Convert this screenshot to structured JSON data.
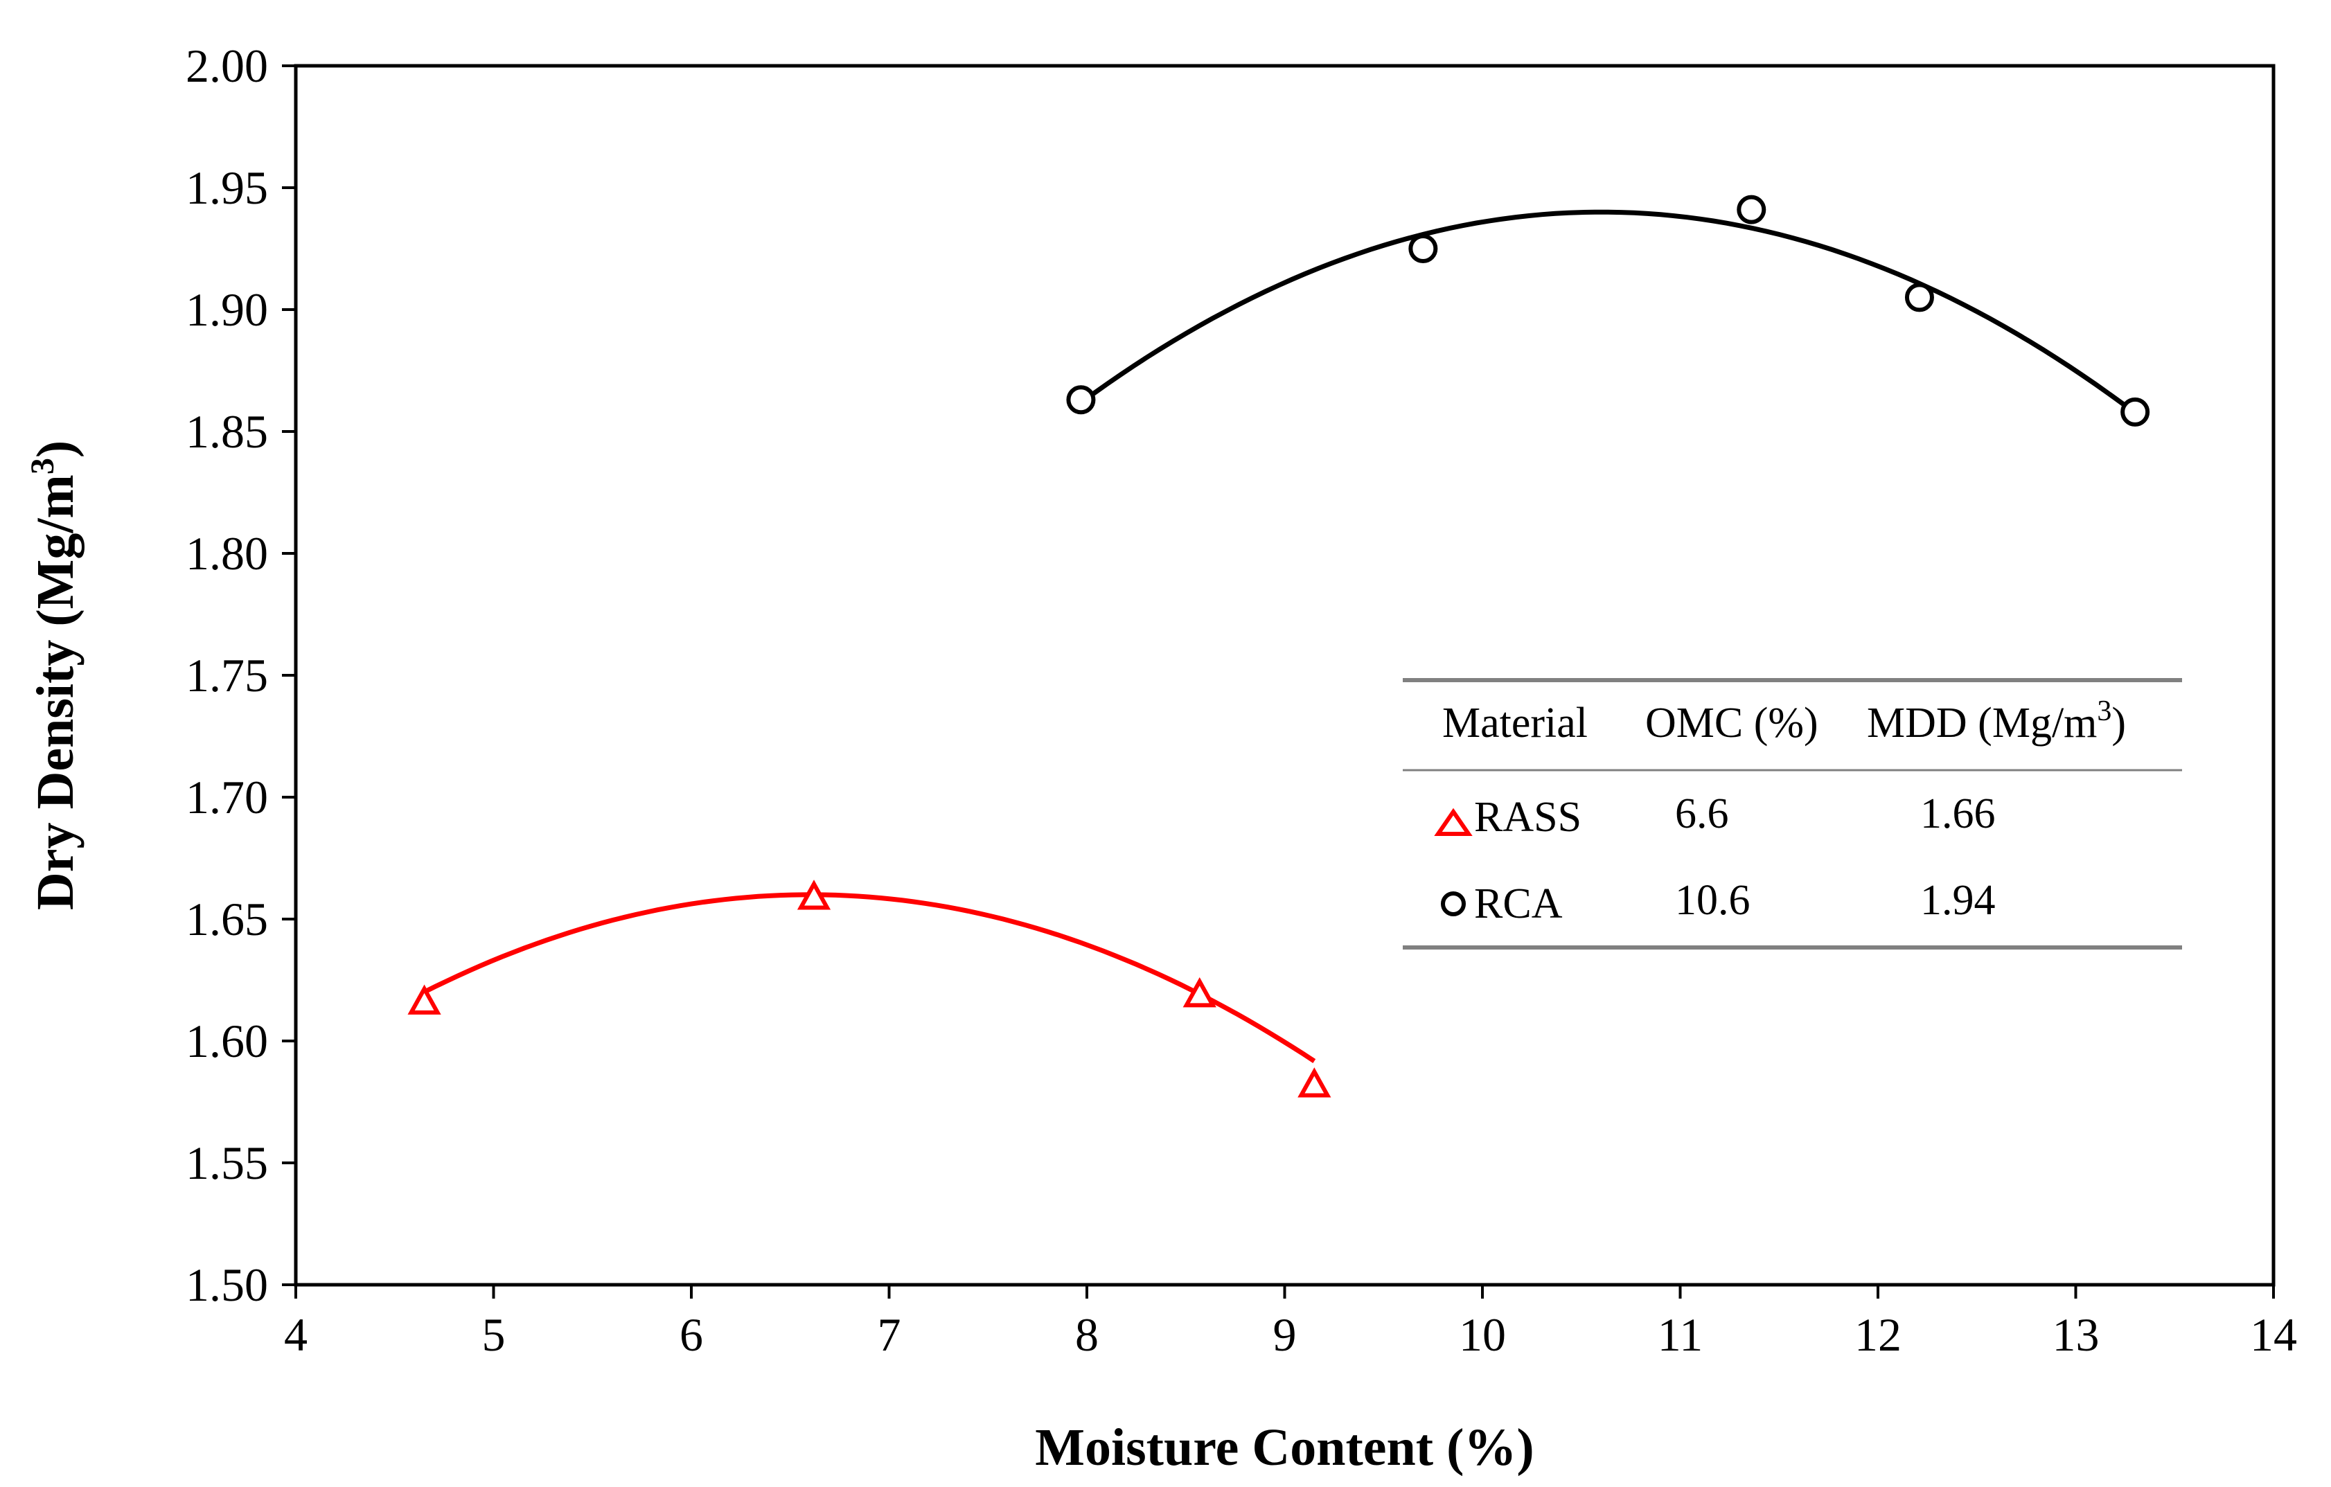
{
  "chart_data": {
    "type": "scatter",
    "title": "",
    "xlabel": "Moisture Content (%)",
    "ylabel_main": "Dry Density (Mg/m",
    "ylabel_sup": "3",
    "ylabel_close": ")",
    "xlim": [
      4,
      14
    ],
    "ylim": [
      1.5,
      2.0
    ],
    "xticks": [
      4,
      5,
      6,
      7,
      8,
      9,
      10,
      11,
      12,
      13,
      14
    ],
    "yticks": [
      "1.50",
      "1.55",
      "1.60",
      "1.65",
      "1.70",
      "1.75",
      "1.80",
      "1.85",
      "1.90",
      "1.95",
      "2.00"
    ],
    "series": [
      {
        "name": "RASS",
        "marker": "triangle",
        "color": "#ff0000",
        "points": [
          {
            "x": 4.65,
            "y": 1.616
          },
          {
            "x": 6.62,
            "y": 1.659
          },
          {
            "x": 8.57,
            "y": 1.619
          },
          {
            "x": 9.15,
            "y": 1.582
          }
        ],
        "fit_curve": {
          "x_range": [
            4.65,
            9.15
          ],
          "vertex_x": 6.6,
          "vertex_y": 1.66,
          "a": -0.0105
        }
      },
      {
        "name": "RCA",
        "marker": "circle",
        "color": "#000000",
        "points": [
          {
            "x": 7.97,
            "y": 1.863
          },
          {
            "x": 9.7,
            "y": 1.925
          },
          {
            "x": 11.36,
            "y": 1.941
          },
          {
            "x": 12.21,
            "y": 1.905
          },
          {
            "x": 13.3,
            "y": 1.858
          }
        ],
        "fit_curve": {
          "x_range": [
            7.97,
            13.3
          ],
          "vertex_x": 10.6,
          "vertex_y": 1.94,
          "a": -0.0113
        }
      }
    ],
    "table": {
      "headers": [
        "Material",
        "OMC (%)",
        "MDD (Mg/m",
        "3",
        ")"
      ],
      "rows": [
        {
          "material": "RASS",
          "omc": "6.6",
          "mdd": "1.66"
        },
        {
          "material": "RCA",
          "omc": "10.6",
          "mdd": "1.94"
        }
      ]
    }
  }
}
